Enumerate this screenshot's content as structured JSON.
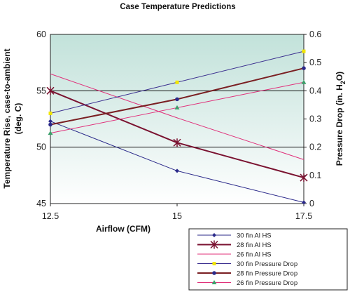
{
  "chart_data": {
    "type": "line",
    "title": "Case Temperature Predictions",
    "xlabel": "Airflow (CFM)",
    "ylabel_left_line1": "Temperature Rise, case-to-ambient",
    "ylabel_left_line2": "(deg. C)",
    "ylabel_right": "Pressure Drop (in. H",
    "ylabel_right_sub": "2",
    "ylabel_right_end": "O)",
    "x": [
      12.5,
      15,
      17.5
    ],
    "x_ticks": [
      "12.5",
      "15",
      "17.5"
    ],
    "xlim": [
      12.5,
      17.5
    ],
    "ylim_left": [
      45,
      60
    ],
    "y_ticks_left": [
      "45",
      "50",
      "55",
      "60"
    ],
    "ylim_right": [
      0,
      0.6
    ],
    "y_ticks_right": [
      "0",
      "0.1",
      "0.2",
      "0.3",
      "0.4",
      "0.5",
      "0.6"
    ],
    "grid": "horizontal at 50, 55",
    "legend_position": "bottom-right",
    "series": [
      {
        "name": "30 fin Al HS",
        "axis": "left",
        "values": [
          52.3,
          47.9,
          45.1
        ],
        "color": "#2b2a8a",
        "marker": "diamond",
        "line_width": 1
      },
      {
        "name": "28 fin Al HS",
        "axis": "left",
        "values": [
          55.0,
          50.4,
          47.3
        ],
        "color": "#7a1230",
        "marker": "star",
        "line_width": 2
      },
      {
        "name": "26 fin Al HS",
        "axis": "left",
        "values": [
          56.5,
          52.6,
          48.9
        ],
        "color": "#e0307a",
        "marker": "none",
        "line_width": 1
      },
      {
        "name": "30 fin Pressure Drop",
        "axis": "right",
        "values": [
          0.32,
          0.43,
          0.54
        ],
        "color": "#3b2f8f",
        "marker": "square-yellow",
        "line_width": 1
      },
      {
        "name": "28 fin Pressure Drop",
        "axis": "right",
        "values": [
          0.28,
          0.37,
          0.48
        ],
        "color": "#7a1f22",
        "marker": "circle",
        "line_width": 2
      },
      {
        "name": "26 fin Pressure Drop",
        "axis": "right",
        "values": [
          0.25,
          0.34,
          0.43
        ],
        "color": "#e0307a",
        "marker": "triangle-green",
        "line_width": 1
      }
    ]
  }
}
